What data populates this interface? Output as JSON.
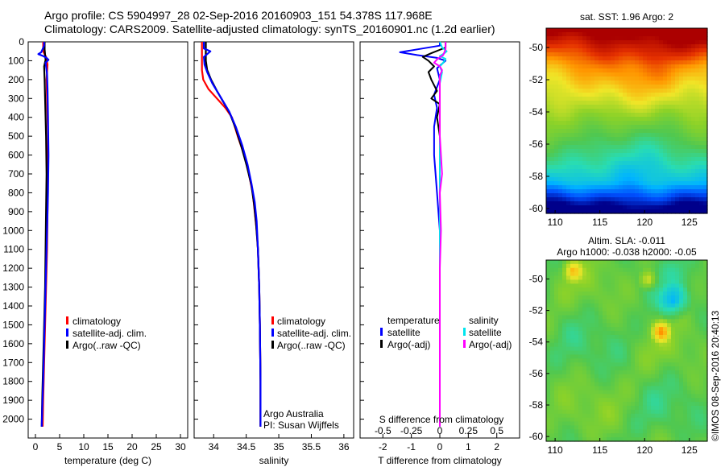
{
  "title": {
    "line1": "Argo profile: CS 5904997_28 02-Sep-2016 20160903_151 54.378S 117.968E",
    "line2": "Climatology: CARS2009. Satellite-adjusted climatology: synTS_20160901.nc (1.2d earlier)"
  },
  "colors": {
    "climatology": "#ff0000",
    "satellite_adj": "#0000ff",
    "argo": "#000000",
    "salinity_satellite": "#00e5ee",
    "salinity_argo": "#ff00ff"
  },
  "chart_data": [
    {
      "type": "line",
      "id": "temperature",
      "xlabel": "temperature (deg C)",
      "xlim": [
        -1.5,
        31.5
      ],
      "ylim": [
        2100,
        0
      ],
      "xticks": [
        "0",
        "5",
        "10",
        "15",
        "20",
        "25",
        "30"
      ],
      "xtick_values": [
        0,
        5,
        10,
        15,
        20,
        25,
        30
      ],
      "yticks": [
        "0",
        "100",
        "200",
        "300",
        "400",
        "500",
        "600",
        "700",
        "800",
        "900",
        "1000",
        "1100",
        "1200",
        "1300",
        "1400",
        "1500",
        "1600",
        "1700",
        "1800",
        "1900",
        "2000"
      ],
      "ytick_values": [
        0,
        100,
        200,
        300,
        400,
        500,
        600,
        700,
        800,
        900,
        1000,
        1100,
        1200,
        1300,
        1400,
        1500,
        1600,
        1700,
        1800,
        1900,
        2000
      ],
      "legend": [
        "climatology",
        "satellite-adj. clim.",
        "Argo(..raw -QC)"
      ],
      "series": [
        {
          "name": "climatology",
          "color_key": "climatology",
          "points": [
            [
              1.6,
              0
            ],
            [
              1.6,
              50
            ],
            [
              2.2,
              80
            ],
            [
              2.5,
              120
            ],
            [
              2.3,
              200
            ],
            [
              2.4,
              300
            ],
            [
              2.6,
              500
            ],
            [
              2.6,
              700
            ],
            [
              2.5,
              900
            ],
            [
              2.4,
              1100
            ],
            [
              2.2,
              1300
            ],
            [
              2.0,
              1500
            ],
            [
              1.8,
              1700
            ],
            [
              1.6,
              1900
            ],
            [
              1.5,
              2040
            ]
          ]
        },
        {
          "name": "Argo(..raw -QC)",
          "color_key": "argo",
          "points": [
            [
              1.9,
              0
            ],
            [
              1.9,
              40
            ],
            [
              2.0,
              70
            ],
            [
              2.1,
              95
            ],
            [
              1.8,
              130
            ],
            [
              1.9,
              200
            ],
            [
              2.0,
              300
            ],
            [
              2.2,
              500
            ],
            [
              2.3,
              700
            ],
            [
              2.2,
              900
            ],
            [
              2.1,
              1100
            ],
            [
              2.0,
              1300
            ],
            [
              1.8,
              1500
            ],
            [
              1.6,
              1700
            ],
            [
              1.4,
              1900
            ],
            [
              1.3,
              2040
            ]
          ]
        },
        {
          "name": "satellite-adj. clim.",
          "color_key": "satellite_adj",
          "points": [
            [
              1.8,
              0
            ],
            [
              1.8,
              20
            ],
            [
              1.2,
              55
            ],
            [
              0.6,
              65
            ],
            [
              1.6,
              75
            ],
            [
              2.3,
              85
            ],
            [
              2.7,
              95
            ],
            [
              2.1,
              110
            ],
            [
              2.4,
              170
            ],
            [
              2.5,
              250
            ],
            [
              2.6,
              400
            ],
            [
              2.7,
              600
            ],
            [
              2.6,
              800
            ],
            [
              2.4,
              1000
            ],
            [
              2.2,
              1200
            ],
            [
              2.0,
              1400
            ],
            [
              1.8,
              1600
            ],
            [
              1.6,
              1800
            ],
            [
              1.4,
              1950
            ],
            [
              1.3,
              2040
            ]
          ]
        }
      ]
    },
    {
      "type": "line",
      "id": "salinity",
      "xlabel": "salinity",
      "xlim": [
        33.7,
        36.15
      ],
      "ylim": [
        2100,
        0
      ],
      "xticks": [
        "34",
        "34.5",
        "35",
        "35.5",
        "36"
      ],
      "xtick_values": [
        34,
        34.5,
        35,
        35.5,
        36
      ],
      "legend": [
        "climatology",
        "satellite-adj. clim.",
        "Argo(..raw -QC)"
      ],
      "annotation": [
        "Argo Australia",
        "PI: Susan Wijffels"
      ],
      "series": [
        {
          "name": "climatology",
          "color_key": "climatology",
          "points": [
            [
              33.82,
              0
            ],
            [
              33.82,
              150
            ],
            [
              33.84,
              200
            ],
            [
              33.92,
              250
            ],
            [
              34.05,
              300
            ],
            [
              34.18,
              350
            ],
            [
              34.28,
              400
            ],
            [
              34.37,
              500
            ],
            [
              34.47,
              600
            ],
            [
              34.54,
              700
            ],
            [
              34.6,
              800
            ],
            [
              34.63,
              900
            ],
            [
              34.66,
              1000
            ],
            [
              34.68,
              1100
            ],
            [
              34.69,
              1200
            ],
            [
              34.7,
              1300
            ],
            [
              34.71,
              1500
            ],
            [
              34.72,
              1800
            ],
            [
              34.72,
              2040
            ]
          ]
        },
        {
          "name": "Argo(..raw -QC)",
          "color_key": "argo",
          "points": [
            [
              33.88,
              0
            ],
            [
              33.88,
              100
            ],
            [
              33.9,
              150
            ],
            [
              33.96,
              200
            ],
            [
              34.05,
              260
            ],
            [
              34.15,
              320
            ],
            [
              34.25,
              380
            ],
            [
              34.34,
              460
            ],
            [
              34.43,
              560
            ],
            [
              34.51,
              660
            ],
            [
              34.58,
              760
            ],
            [
              34.62,
              860
            ],
            [
              34.65,
              960
            ],
            [
              34.68,
              1100
            ],
            [
              34.7,
              1300
            ],
            [
              34.71,
              1500
            ],
            [
              34.72,
              1800
            ],
            [
              34.72,
              2040
            ]
          ]
        },
        {
          "name": "satellite-adj. clim.",
          "color_key": "satellite_adj",
          "points": [
            [
              33.85,
              0
            ],
            [
              33.85,
              35
            ],
            [
              33.95,
              50
            ],
            [
              33.9,
              65
            ],
            [
              33.85,
              80
            ],
            [
              33.86,
              120
            ],
            [
              33.9,
              160
            ],
            [
              33.98,
              220
            ],
            [
              34.12,
              300
            ],
            [
              34.24,
              370
            ],
            [
              34.34,
              450
            ],
            [
              34.44,
              550
            ],
            [
              34.52,
              650
            ],
            [
              34.58,
              750
            ],
            [
              34.63,
              850
            ],
            [
              34.66,
              950
            ],
            [
              34.68,
              1100
            ],
            [
              34.7,
              1300
            ],
            [
              34.71,
              1500
            ],
            [
              34.72,
              1800
            ],
            [
              34.72,
              2040
            ]
          ]
        }
      ]
    },
    {
      "type": "line",
      "id": "difference",
      "xlabel": "T difference from climatology",
      "xlabel_top": "S difference from climatology",
      "xlim": [
        -2.8,
        2.8
      ],
      "ylim": [
        2100,
        0
      ],
      "xticks": [
        "-2",
        "-1",
        "0",
        "1",
        "2"
      ],
      "xtick_values": [
        -2,
        -1,
        0,
        1,
        2
      ],
      "s_ticks": [
        "-0.5",
        "-0.25",
        "0",
        "0.25",
        "0.5"
      ],
      "s_tick_values": [
        -0.5,
        -0.25,
        0,
        0.25,
        0.5
      ],
      "s_scale": 4,
      "legend": {
        "temperature_heading": "temperature",
        "salinity_heading": "salinity",
        "temperature": [
          "satellite",
          "Argo(-adj)"
        ],
        "salinity": [
          "satellite",
          "Argo(-adj)"
        ]
      },
      "series": [
        {
          "name": "T satellite",
          "color_key": "satellite_adj",
          "points": [
            [
              0,
              0
            ],
            [
              0,
              20
            ],
            [
              -0.6,
              35
            ],
            [
              -1.4,
              55
            ],
            [
              -0.8,
              70
            ],
            [
              -0.1,
              85
            ],
            [
              0.2,
              100
            ],
            [
              -0.1,
              140
            ],
            [
              0.0,
              200
            ],
            [
              -0.2,
              280
            ],
            [
              -0.1,
              350
            ],
            [
              -0.2,
              450
            ],
            [
              -0.2,
              600
            ],
            [
              -0.1,
              800
            ],
            [
              0,
              1000
            ],
            [
              0,
              1500
            ],
            [
              0,
              2040
            ]
          ]
        },
        {
          "name": "T Argo(-adj)",
          "color_key": "argo",
          "points": [
            [
              0.2,
              0
            ],
            [
              0.2,
              30
            ],
            [
              -0.3,
              60
            ],
            [
              -0.6,
              80
            ],
            [
              -0.4,
              100
            ],
            [
              -0.2,
              130
            ],
            [
              -0.4,
              160
            ],
            [
              -0.3,
              200
            ],
            [
              -0.1,
              260
            ],
            [
              -0.3,
              300
            ],
            [
              0,
              330
            ],
            [
              -0.1,
              400
            ],
            [
              0,
              500
            ],
            [
              0,
              800
            ],
            [
              0,
              1200
            ],
            [
              0,
              2040
            ]
          ]
        },
        {
          "name": "S satellite",
          "color_key": "salinity_satellite",
          "points": [
            [
              0,
              0
            ],
            [
              0.02,
              30
            ],
            [
              0.06,
              50
            ],
            [
              0.04,
              60
            ],
            [
              0.0,
              75
            ],
            [
              0.05,
              90
            ],
            [
              0.03,
              110
            ],
            [
              0.0,
              130
            ],
            [
              0.02,
              160
            ],
            [
              0.0,
              220
            ],
            [
              0,
              400
            ],
            [
              0,
              800
            ],
            [
              0,
              1200
            ],
            [
              0,
              2040
            ]
          ]
        },
        {
          "name": "S Argo(-adj)",
          "color_key": "salinity_argo",
          "points": [
            [
              0.05,
              0
            ],
            [
              0.05,
              40
            ],
            [
              0.03,
              70
            ],
            [
              -0.02,
              90
            ],
            [
              -0.05,
              110
            ],
            [
              0.0,
              130
            ],
            [
              0.02,
              150
            ],
            [
              0.0,
              180
            ],
            [
              0.0,
              300
            ],
            [
              0.0,
              500
            ],
            [
              0.02,
              700
            ],
            [
              0.0,
              800
            ],
            [
              0.01,
              1000
            ],
            [
              0.0,
              1200
            ],
            [
              0,
              2040
            ]
          ]
        }
      ]
    },
    {
      "type": "heatmap",
      "id": "sst-map",
      "title": "sat. SST: 1.96  Argo: 2",
      "xlim": [
        109,
        127
      ],
      "ylim": [
        -60.3,
        -48.8
      ],
      "xticks": [
        "110",
        "115",
        "120",
        "125"
      ],
      "xtick_values": [
        110,
        115,
        120,
        125
      ],
      "yticks": [
        "-50",
        "-52",
        "-54",
        "-56",
        "-58",
        "-60"
      ],
      "ytick_values": [
        -50,
        -52,
        -54,
        -56,
        -58,
        -60
      ],
      "colormap": [
        "#00008b",
        "#0050ff",
        "#00b4ff",
        "#28dcb4",
        "#50c850",
        "#8cd228",
        "#f0e628",
        "#ff9600",
        "#e63200",
        "#aa0000"
      ]
    },
    {
      "type": "heatmap",
      "id": "sla-map",
      "title": "Altim. SLA: -0.011",
      "subtitle": "Argo h1000: -0.038  h2000: -0.05",
      "xlim": [
        109,
        127
      ],
      "ylim": [
        -60.3,
        -48.8
      ],
      "xticks": [
        "110",
        "115",
        "120",
        "125"
      ],
      "xtick_values": [
        110,
        115,
        120,
        125
      ],
      "yticks": [
        "-50",
        "-52",
        "-54",
        "-56",
        "-58",
        "-60"
      ],
      "ytick_values": [
        -50,
        -52,
        -54,
        -56,
        -58,
        -60
      ],
      "colormap": [
        "#00008b",
        "#0050ff",
        "#00b4ff",
        "#28dcb4",
        "#50c850",
        "#8cd228",
        "#f0e628",
        "#ff9600",
        "#e63200",
        "#aa0000"
      ]
    }
  ],
  "credit": "©IMOS 08-Sep-2016 20:40:13"
}
